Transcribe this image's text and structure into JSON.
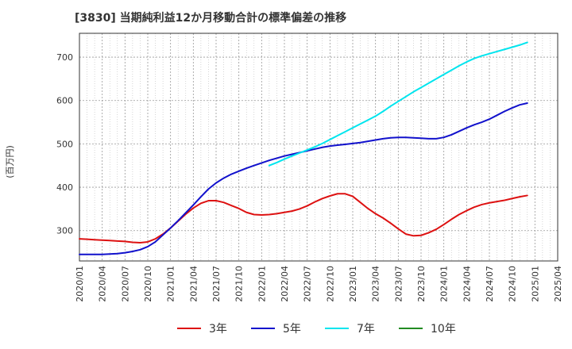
{
  "chart_data": {
    "type": "line",
    "title": "[3830]  当期純利益12か月移動合計の標準偏差の推移",
    "ylabel": "(百万円)",
    "ylim": [
      230,
      755
    ],
    "yticks": [
      300,
      400,
      500,
      600,
      700
    ],
    "x_ticks": [
      "2020/01",
      "2020/04",
      "2020/07",
      "2020/10",
      "2021/01",
      "2021/04",
      "2021/07",
      "2021/10",
      "2022/01",
      "2022/04",
      "2022/07",
      "2022/10",
      "2023/01",
      "2023/04",
      "2023/07",
      "2023/10",
      "2024/01",
      "2024/04",
      "2024/07",
      "2024/10",
      "2025/01",
      "2025/04"
    ],
    "grid": true,
    "legend_position": "bottom",
    "series": [
      {
        "name": "3年",
        "color": "#dd1111",
        "values": [
          [
            "2020/01",
            281
          ],
          [
            "2020/02",
            280
          ],
          [
            "2020/03",
            279
          ],
          [
            "2020/04",
            278
          ],
          [
            "2020/05",
            277
          ],
          [
            "2020/06",
            276
          ],
          [
            "2020/07",
            275
          ],
          [
            "2020/08",
            273
          ],
          [
            "2020/09",
            272
          ],
          [
            "2020/10",
            274
          ],
          [
            "2020/11",
            281
          ],
          [
            "2020/12",
            292
          ],
          [
            "2021/01",
            306
          ],
          [
            "2021/02",
            322
          ],
          [
            "2021/03",
            338
          ],
          [
            "2021/04",
            352
          ],
          [
            "2021/05",
            363
          ],
          [
            "2021/06",
            369
          ],
          [
            "2021/07",
            369
          ],
          [
            "2021/08",
            365
          ],
          [
            "2021/09",
            358
          ],
          [
            "2021/10",
            351
          ],
          [
            "2021/11",
            342
          ],
          [
            "2021/12",
            337
          ],
          [
            "2022/01",
            336
          ],
          [
            "2022/02",
            337
          ],
          [
            "2022/03",
            339
          ],
          [
            "2022/04",
            342
          ],
          [
            "2022/05",
            345
          ],
          [
            "2022/06",
            350
          ],
          [
            "2022/07",
            357
          ],
          [
            "2022/08",
            366
          ],
          [
            "2022/09",
            374
          ],
          [
            "2022/10",
            380
          ],
          [
            "2022/11",
            385
          ],
          [
            "2022/12",
            385
          ],
          [
            "2023/01",
            379
          ],
          [
            "2023/02",
            365
          ],
          [
            "2023/03",
            351
          ],
          [
            "2023/04",
            339
          ],
          [
            "2023/05",
            329
          ],
          [
            "2023/06",
            317
          ],
          [
            "2023/07",
            304
          ],
          [
            "2023/08",
            292
          ],
          [
            "2023/09",
            288
          ],
          [
            "2023/10",
            289
          ],
          [
            "2023/11",
            295
          ],
          [
            "2023/12",
            303
          ],
          [
            "2024/01",
            314
          ],
          [
            "2024/02",
            326
          ],
          [
            "2024/03",
            337
          ],
          [
            "2024/04",
            346
          ],
          [
            "2024/05",
            354
          ],
          [
            "2024/06",
            360
          ],
          [
            "2024/07",
            364
          ],
          [
            "2024/08",
            367
          ],
          [
            "2024/09",
            370
          ],
          [
            "2024/10",
            374
          ],
          [
            "2024/11",
            378
          ],
          [
            "2024/12",
            381
          ]
        ]
      },
      {
        "name": "5年",
        "color": "#1111cc",
        "values": [
          [
            "2020/01",
            245
          ],
          [
            "2020/02",
            245
          ],
          [
            "2020/03",
            245
          ],
          [
            "2020/04",
            245
          ],
          [
            "2020/05",
            246
          ],
          [
            "2020/06",
            247
          ],
          [
            "2020/07",
            249
          ],
          [
            "2020/08",
            252
          ],
          [
            "2020/09",
            256
          ],
          [
            "2020/10",
            263
          ],
          [
            "2020/11",
            274
          ],
          [
            "2020/12",
            290
          ],
          [
            "2021/01",
            306
          ],
          [
            "2021/02",
            323
          ],
          [
            "2021/03",
            341
          ],
          [
            "2021/04",
            359
          ],
          [
            "2021/05",
            378
          ],
          [
            "2021/06",
            396
          ],
          [
            "2021/07",
            410
          ],
          [
            "2021/08",
            421
          ],
          [
            "2021/09",
            430
          ],
          [
            "2021/10",
            437
          ],
          [
            "2021/11",
            444
          ],
          [
            "2021/12",
            450
          ],
          [
            "2022/01",
            456
          ],
          [
            "2022/02",
            462
          ],
          [
            "2022/03",
            467
          ],
          [
            "2022/04",
            472
          ],
          [
            "2022/05",
            476
          ],
          [
            "2022/06",
            480
          ],
          [
            "2022/07",
            484
          ],
          [
            "2022/08",
            488
          ],
          [
            "2022/09",
            492
          ],
          [
            "2022/10",
            495
          ],
          [
            "2022/11",
            497
          ],
          [
            "2022/12",
            499
          ],
          [
            "2023/01",
            501
          ],
          [
            "2023/02",
            503
          ],
          [
            "2023/03",
            506
          ],
          [
            "2023/04",
            509
          ],
          [
            "2023/05",
            512
          ],
          [
            "2023/06",
            514
          ],
          [
            "2023/07",
            515
          ],
          [
            "2023/08",
            515
          ],
          [
            "2023/09",
            514
          ],
          [
            "2023/10",
            513
          ],
          [
            "2023/11",
            512
          ],
          [
            "2023/12",
            512
          ],
          [
            "2024/01",
            515
          ],
          [
            "2024/02",
            521
          ],
          [
            "2024/03",
            529
          ],
          [
            "2024/04",
            537
          ],
          [
            "2024/05",
            544
          ],
          [
            "2024/06",
            550
          ],
          [
            "2024/07",
            557
          ],
          [
            "2024/08",
            566
          ],
          [
            "2024/09",
            575
          ],
          [
            "2024/10",
            583
          ],
          [
            "2024/11",
            590
          ],
          [
            "2024/12",
            594
          ]
        ]
      },
      {
        "name": "7年",
        "color": "#00e5ee",
        "values": [
          [
            "2022/02",
            450
          ],
          [
            "2022/03",
            457
          ],
          [
            "2022/04",
            465
          ],
          [
            "2022/05",
            472
          ],
          [
            "2022/06",
            479
          ],
          [
            "2022/07",
            486
          ],
          [
            "2022/08",
            493
          ],
          [
            "2022/09",
            501
          ],
          [
            "2022/10",
            510
          ],
          [
            "2022/11",
            519
          ],
          [
            "2022/12",
            528
          ],
          [
            "2023/01",
            537
          ],
          [
            "2023/02",
            546
          ],
          [
            "2023/03",
            555
          ],
          [
            "2023/04",
            564
          ],
          [
            "2023/05",
            575
          ],
          [
            "2023/06",
            587
          ],
          [
            "2023/07",
            598
          ],
          [
            "2023/08",
            609
          ],
          [
            "2023/09",
            620
          ],
          [
            "2023/10",
            630
          ],
          [
            "2023/11",
            640
          ],
          [
            "2023/12",
            650
          ],
          [
            "2024/01",
            660
          ],
          [
            "2024/02",
            670
          ],
          [
            "2024/03",
            680
          ],
          [
            "2024/04",
            689
          ],
          [
            "2024/05",
            697
          ],
          [
            "2024/06",
            703
          ],
          [
            "2024/07",
            708
          ],
          [
            "2024/08",
            713
          ],
          [
            "2024/09",
            718
          ],
          [
            "2024/10",
            723
          ],
          [
            "2024/11",
            728
          ],
          [
            "2024/12",
            734
          ]
        ]
      },
      {
        "name": "10年",
        "color": "#228b22",
        "values": []
      }
    ]
  }
}
